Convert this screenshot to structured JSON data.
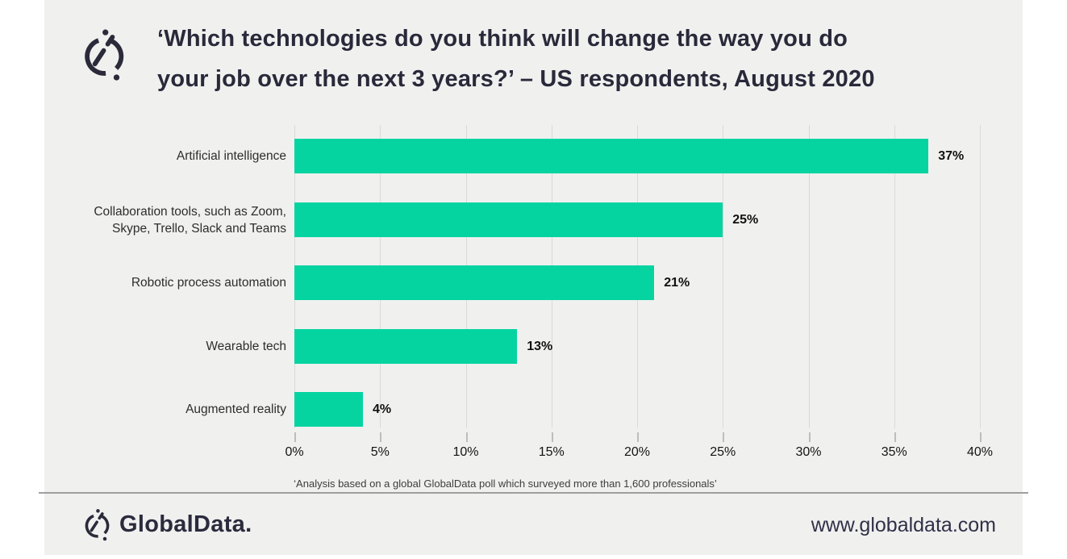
{
  "chart_data": {
    "type": "bar",
    "orientation": "horizontal",
    "title": "‘Which technologies do you think will change the way you do\nyour job over the next 3 years?’ – US respondents, August 2020",
    "categories": [
      "Artificial intelligence",
      "Collaboration tools, such as Zoom,\nSkype, Trello, Slack and Teams",
      "Robotic process automation",
      "Wearable tech",
      "Augmented reality"
    ],
    "values": [
      37,
      25,
      21,
      13,
      4
    ],
    "value_labels": [
      "37%",
      "25%",
      "21%",
      "13%",
      "4%"
    ],
    "x_ticks": [
      "0%",
      "5%",
      "10%",
      "15%",
      "20%",
      "25%",
      "30%",
      "35%",
      "40%"
    ],
    "xlim": [
      0,
      40
    ],
    "xlabel": "",
    "ylabel": "",
    "grid": true,
    "legend": "none",
    "bar_color": "#05d4a1"
  },
  "footnote": "‘Analysis based on a global GlobalData poll which surveyed more than 1,600 professionals’",
  "footer": {
    "brand": "GlobalData.",
    "website": "www.globaldata.com"
  },
  "icons": {
    "header_logo": "globaldata-globe-icon",
    "footer_logo": "globaldata-globe-icon"
  },
  "colors": {
    "page_background": "#ffffff",
    "panel_background": "#f0f0ef",
    "title_text": "#29293a",
    "bar": "#05d4a1",
    "gridline": "#dadad9",
    "category_text": "#2d2d2d",
    "value_text": "#111111",
    "footer_text": "#2b2b3d"
  }
}
